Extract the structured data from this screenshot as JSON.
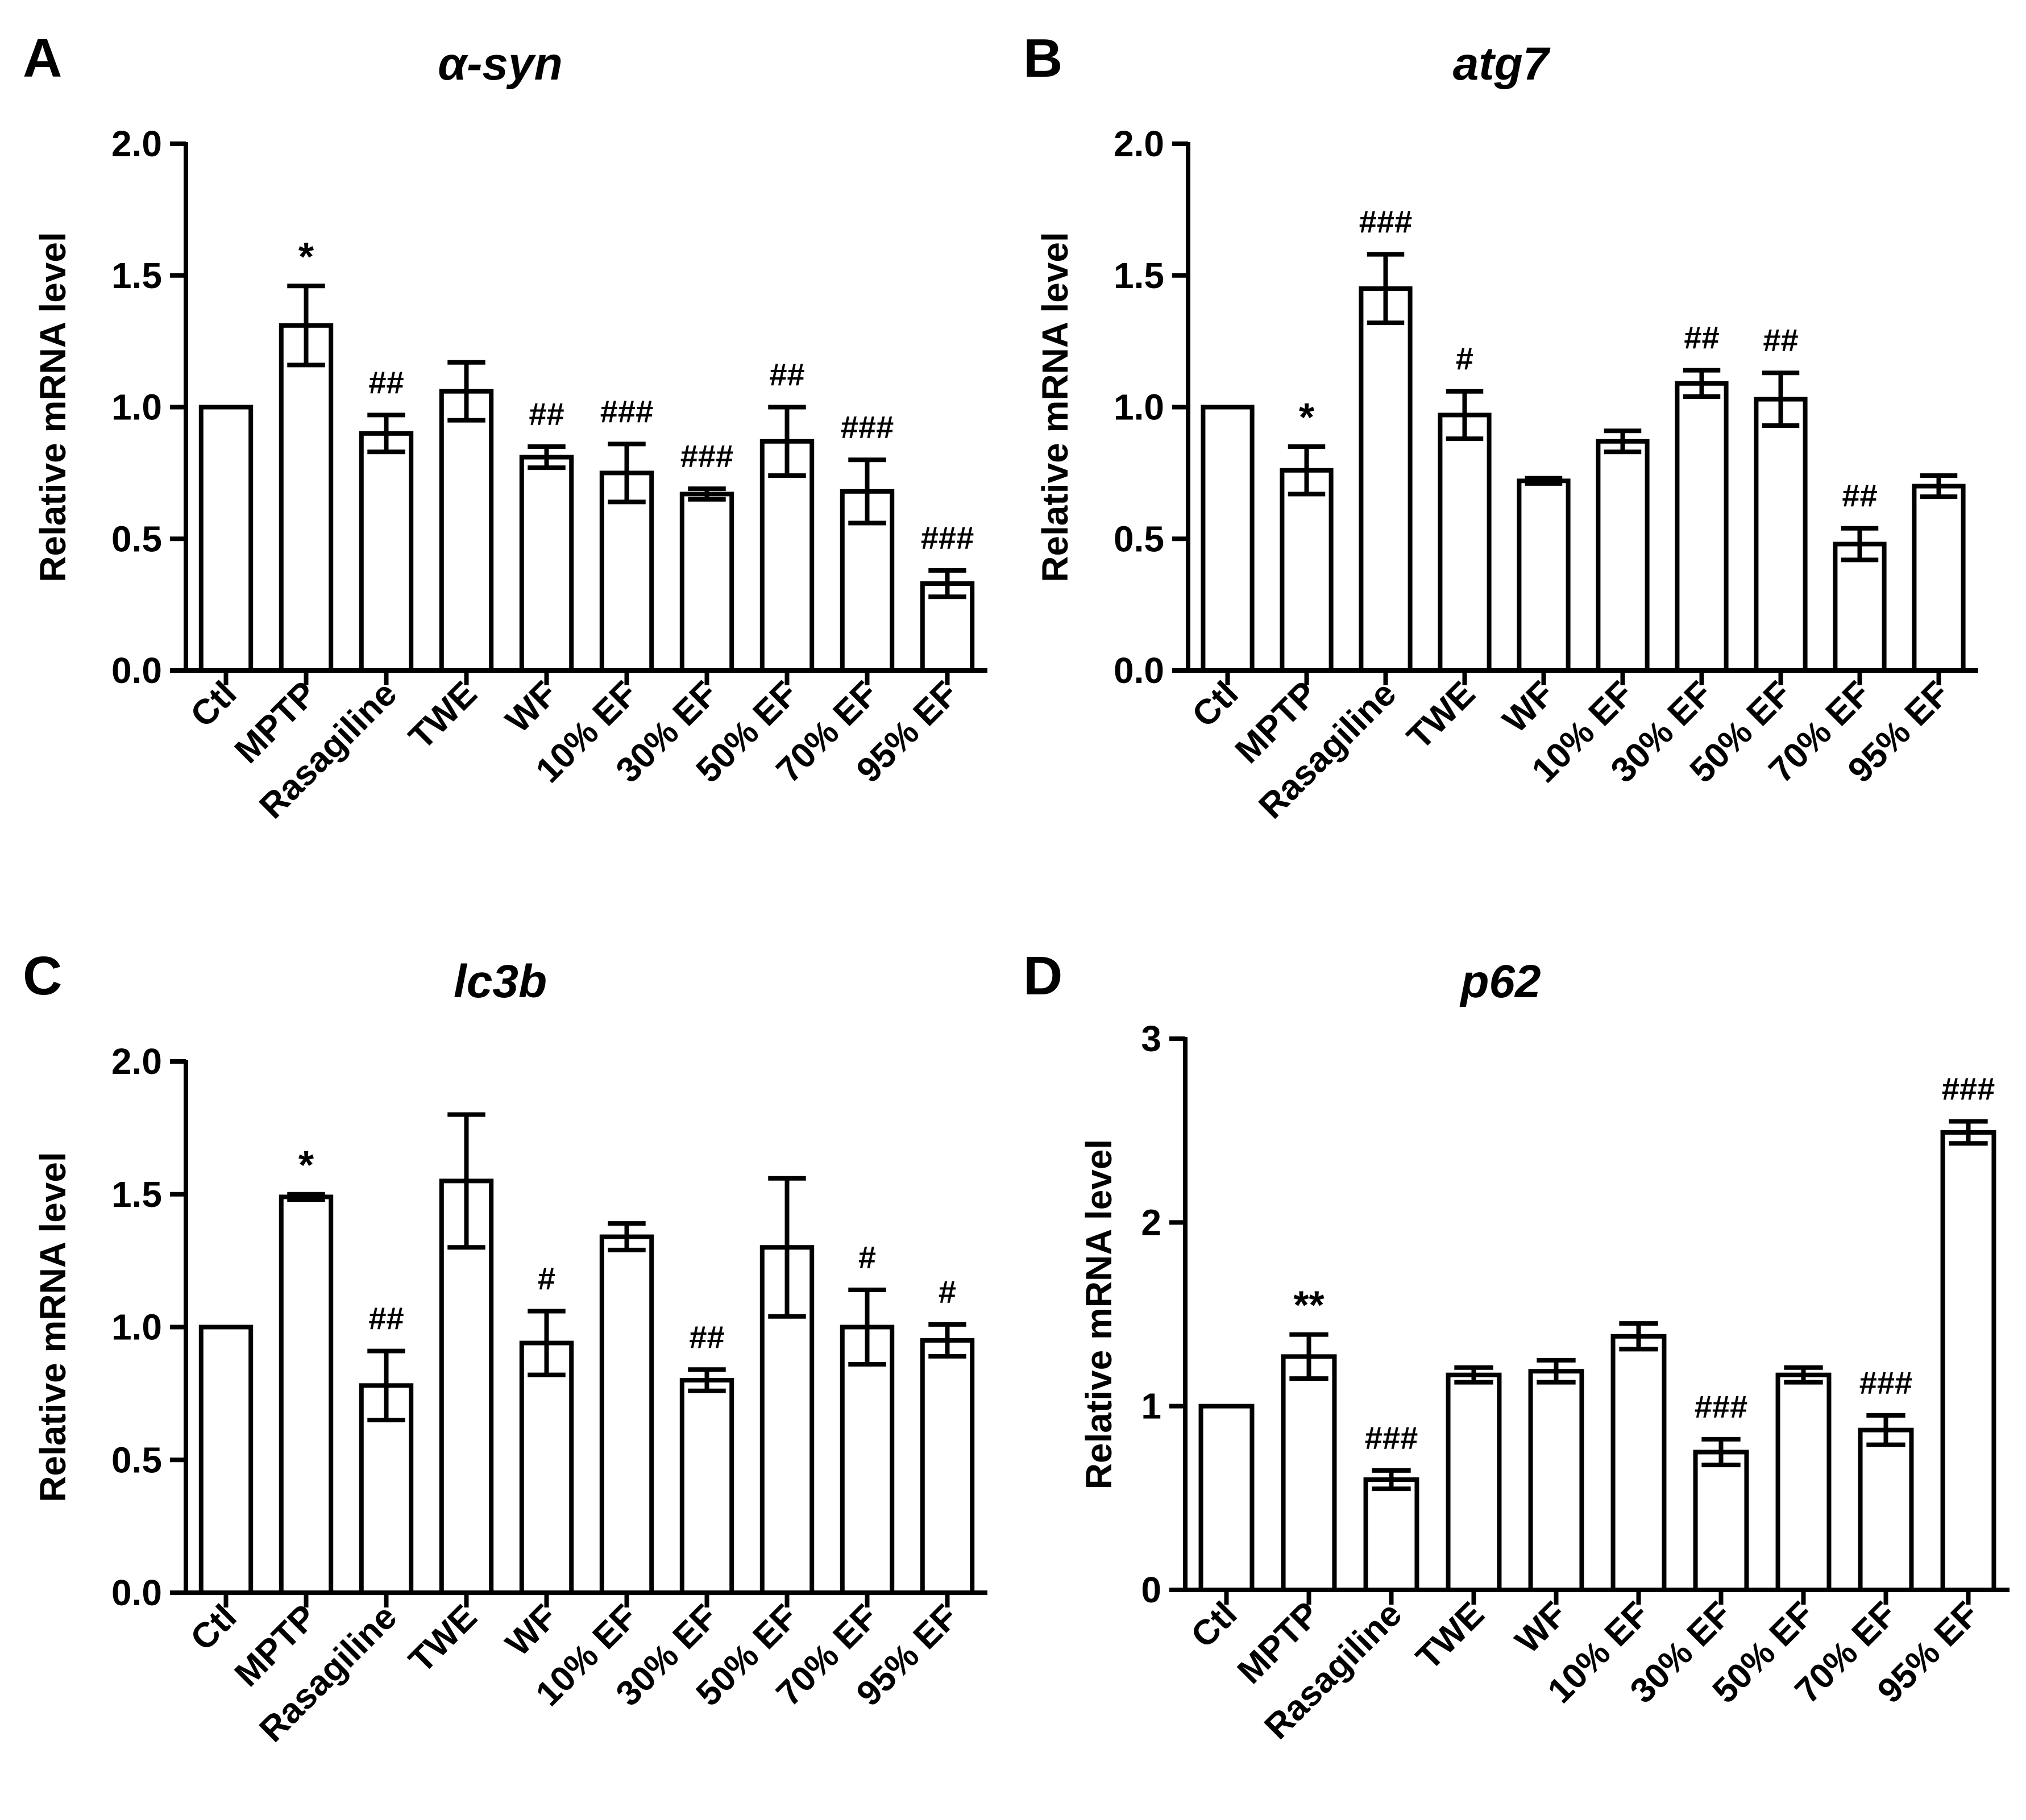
{
  "figure": {
    "categories": [
      "Ctl",
      "MPTP",
      "Rasagiline",
      "TWE",
      "WF",
      "10% EF",
      "30% EF",
      "50% EF",
      "70% EF",
      "95% EF"
    ]
  },
  "chart_data": [
    {
      "panel": "A",
      "type": "bar",
      "title": "α-syn",
      "ylabel": "Relative mRNA level",
      "xlabel": "",
      "ylim": [
        0,
        2.0
      ],
      "yticks": [
        "0.0",
        "0.5",
        "1.0",
        "1.5",
        "2.0"
      ],
      "categories": [
        "Ctl",
        "MPTP",
        "Rasagiline",
        "TWE",
        "WF",
        "10% EF",
        "30% EF",
        "50% EF",
        "70% EF",
        "95% EF"
      ],
      "values": [
        1.0,
        1.31,
        0.9,
        1.06,
        0.81,
        0.75,
        0.67,
        0.87,
        0.68,
        0.33
      ],
      "errors": [
        0,
        0.15,
        0.07,
        0.11,
        0.04,
        0.11,
        0.02,
        0.13,
        0.12,
        0.05
      ],
      "annotations": [
        "",
        "*",
        "##",
        "",
        "##",
        "###",
        "###",
        "##",
        "###",
        "###"
      ]
    },
    {
      "panel": "B",
      "type": "bar",
      "title": "atg7",
      "ylabel": "Relative mRNA level",
      "xlabel": "",
      "ylim": [
        0,
        2.0
      ],
      "yticks": [
        "0.0",
        "0.5",
        "1.0",
        "1.5",
        "2.0"
      ],
      "categories": [
        "Ctl",
        "MPTP",
        "Rasagiline",
        "TWE",
        "WF",
        "10% EF",
        "30% EF",
        "50% EF",
        "70% EF",
        "95% EF"
      ],
      "values": [
        1.0,
        0.76,
        1.45,
        0.97,
        0.72,
        0.87,
        1.09,
        1.03,
        0.48,
        0.7
      ],
      "errors": [
        0,
        0.09,
        0.13,
        0.09,
        0.01,
        0.04,
        0.05,
        0.1,
        0.06,
        0.04
      ],
      "annotations": [
        "",
        "*",
        "###",
        "#",
        "",
        "",
        "##",
        "##",
        "##",
        ""
      ]
    },
    {
      "panel": "C",
      "type": "bar",
      "title": "lc3b",
      "ylabel": "Relative mRNA level",
      "xlabel": "",
      "ylim": [
        0,
        2.0
      ],
      "yticks": [
        "0.0",
        "0.5",
        "1.0",
        "1.5",
        "2.0"
      ],
      "categories": [
        "Ctl",
        "MPTP",
        "Rasagiline",
        "TWE",
        "WF",
        "10% EF",
        "30% EF",
        "50% EF",
        "70% EF",
        "95% EF"
      ],
      "values": [
        1.0,
        1.49,
        0.78,
        1.55,
        0.94,
        1.34,
        0.8,
        1.3,
        1.0,
        0.95
      ],
      "errors": [
        0,
        0.01,
        0.13,
        0.25,
        0.12,
        0.05,
        0.04,
        0.26,
        0.14,
        0.06
      ],
      "annotations": [
        "",
        "*",
        "##",
        "",
        "#",
        "",
        "##",
        "",
        "#",
        "#"
      ]
    },
    {
      "panel": "D",
      "type": "bar",
      "title": "p62",
      "ylabel": "Relative mRNA level",
      "xlabel": "",
      "ylim": [
        0,
        3
      ],
      "yticks": [
        "0",
        "1",
        "2",
        "3"
      ],
      "categories": [
        "Ctl",
        "MPTP",
        "Rasagiline",
        "TWE",
        "WF",
        "10% EF",
        "30% EF",
        "50% EF",
        "70% EF",
        "95% EF"
      ],
      "values": [
        1.0,
        1.27,
        0.6,
        1.17,
        1.19,
        1.38,
        0.75,
        1.17,
        0.87,
        2.49
      ],
      "errors": [
        0,
        0.12,
        0.05,
        0.04,
        0.06,
        0.07,
        0.07,
        0.04,
        0.08,
        0.06
      ],
      "annotations": [
        "",
        "**",
        "###",
        "",
        "",
        "",
        "###",
        "",
        "###",
        "###"
      ]
    }
  ]
}
